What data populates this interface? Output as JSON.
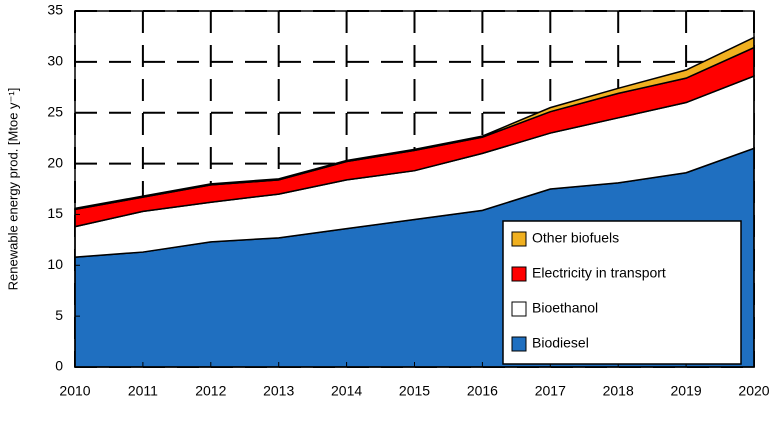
{
  "chart_data": {
    "type": "stacked_area",
    "y_label": "Renewable energy prod.    [Mtoe y⁻¹]",
    "x": [
      2010,
      2011,
      2012,
      2013,
      2014,
      2015,
      2016,
      2017,
      2018,
      2019,
      2020
    ],
    "series": [
      {
        "name": "Biodiesel",
        "color": "#1f6fc0",
        "values": [
          10.8,
          11.3,
          12.3,
          12.7,
          13.6,
          14.5,
          15.4,
          17.5,
          18.1,
          19.1,
          21.5
        ]
      },
      {
        "name": "Bioethanol",
        "color": "#ffffff",
        "values": [
          3.0,
          4.0,
          3.9,
          4.3,
          4.8,
          4.8,
          5.6,
          5.5,
          6.4,
          6.9,
          7.1
        ]
      },
      {
        "name": "Electricity in transport",
        "color": "#ff0000",
        "values": [
          1.7,
          1.4,
          1.7,
          1.4,
          1.8,
          2.0,
          1.6,
          2.1,
          2.4,
          2.4,
          2.8
        ]
      },
      {
        "name": "Other biofuels",
        "color": "#f0b020",
        "values": [
          0.1,
          0.1,
          0.1,
          0.1,
          0.1,
          0.1,
          0.1,
          0.4,
          0.5,
          0.8,
          1.0
        ]
      }
    ],
    "xlim": [
      2010,
      2020
    ],
    "xticks": [
      2010,
      2011,
      2012,
      2013,
      2014,
      2015,
      2016,
      2017,
      2018,
      2019,
      2020
    ],
    "ylim": [
      0,
      35
    ],
    "yticks": [
      0,
      5,
      10,
      15,
      20,
      25,
      30,
      35
    ],
    "grid": true,
    "legend": "lower right"
  }
}
